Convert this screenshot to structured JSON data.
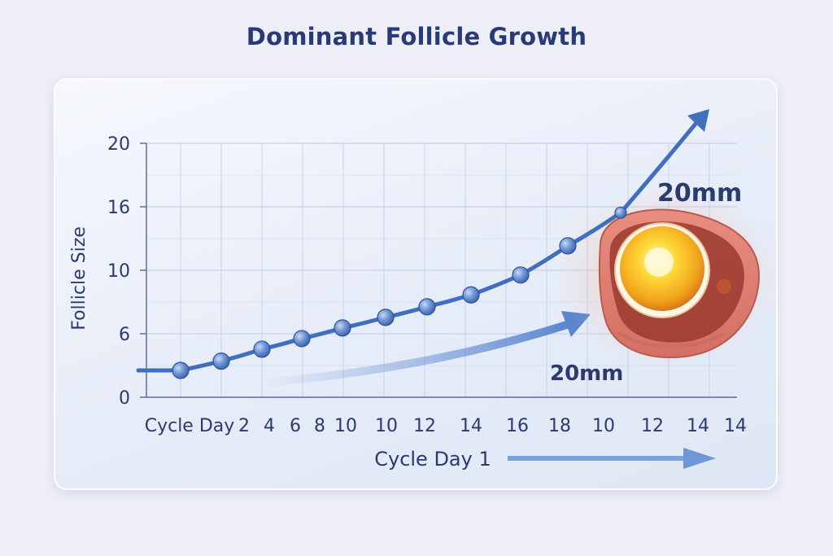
{
  "chart_data": {
    "type": "line",
    "title": "Dominant Follicle Growth",
    "ylabel": "Follicle Size",
    "xlabel": "Cycle Day 1",
    "first_tick_label": "Cycle Day",
    "x_tick_labels": [
      "2",
      "4",
      "6",
      "8",
      "10",
      "10",
      "12",
      "14",
      "16",
      "18",
      "10",
      "12",
      "14",
      "14"
    ],
    "y_tick_labels": [
      "0",
      "6",
      "10",
      "16",
      "20"
    ],
    "series": [
      {
        "values": [
          4.3,
          5.0,
          5.9,
          6.7,
          7.5,
          8.3,
          9.1,
          10.0,
          11.5,
          13.7,
          16.2,
          18.0
        ]
      }
    ],
    "annotations": {
      "label_top": "20mm",
      "label_bottom": "20mm"
    },
    "colors": {
      "title": "#283a78",
      "line": "#3f6fbe",
      "marker": "#5a86cf",
      "grid": "#c7d2ea",
      "text": "#2b3b6e"
    },
    "grid": true,
    "icon": "follicle-illustration"
  }
}
